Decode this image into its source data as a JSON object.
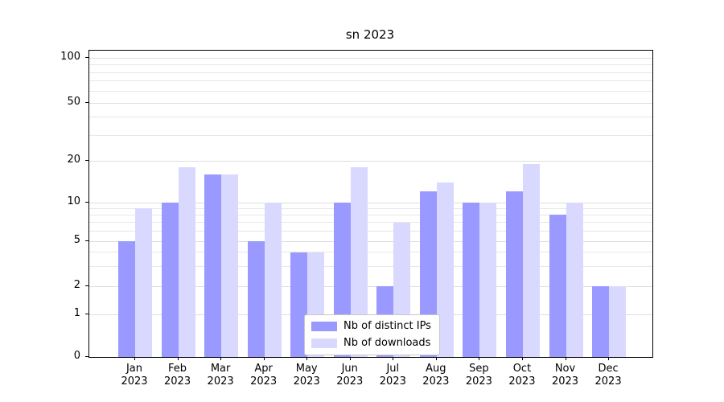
{
  "chart_data": {
    "type": "bar",
    "title": "sn 2023",
    "categories": [
      "Jan 2023",
      "Feb 2023",
      "Mar 2023",
      "Apr 2023",
      "May 2023",
      "Jun 2023",
      "Jul 2023",
      "Aug 2023",
      "Sep 2023",
      "Oct 2023",
      "Nov 2023",
      "Dec 2023"
    ],
    "series": [
      {
        "name": "Nb of distinct IPs",
        "color": "#9999ff",
        "values": [
          5,
          10,
          16,
          5,
          4,
          10,
          2,
          12,
          10,
          12,
          8,
          2
        ]
      },
      {
        "name": "Nb of downloads",
        "color": "#d9d9ff",
        "values": [
          9,
          18,
          16,
          10,
          4,
          18,
          7,
          14,
          10,
          19,
          10,
          2
        ]
      }
    ],
    "xlabel": "",
    "ylabel": "",
    "yscale": "symlog",
    "ylim": [
      0,
      100
    ],
    "yticks": [
      0,
      1,
      2,
      5,
      10,
      20,
      50,
      100
    ],
    "grid": true,
    "gridline_values": [
      1,
      2,
      3,
      4,
      5,
      6,
      7,
      8,
      9,
      10,
      20,
      30,
      40,
      50,
      60,
      70,
      80,
      90,
      100
    ],
    "legend_position": "lower center"
  }
}
